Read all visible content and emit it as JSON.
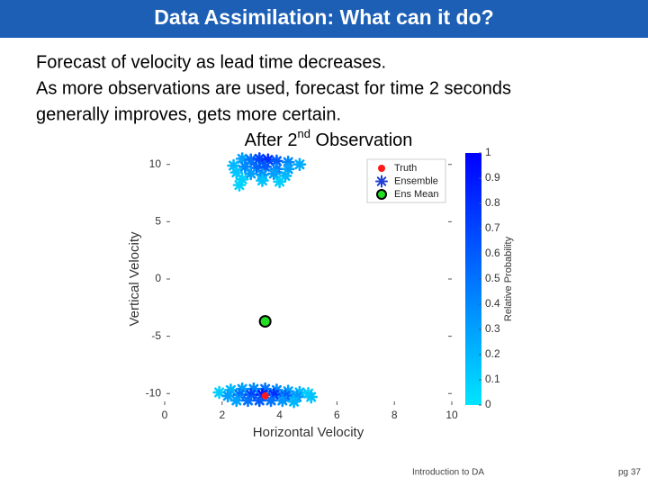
{
  "title": "Data Assimilation: What can it do?",
  "body": [
    "Forecast of velocity as lead time decreases.",
    "As more observations are used, forecast for time 2 seconds",
    "generally improves, gets more certain."
  ],
  "subtitle": [
    "After 2",
    "nd",
    " Observation"
  ],
  "footer": "Introduction to DA",
  "page_number": "pg 37",
  "chart_data": {
    "type": "scatter",
    "xlabel": "Horizontal Velocity",
    "ylabel": "Vertical Velocity",
    "xlim": [
      0,
      10
    ],
    "ylim": [
      -11,
      11
    ],
    "xticks": [
      0,
      2,
      4,
      6,
      8,
      10
    ],
    "yticks": [
      -10,
      -5,
      0,
      5,
      10
    ],
    "series": [
      {
        "name": "Truth",
        "color": "#ff1a1a",
        "marker": "dot",
        "x": [
          3.5
        ],
        "y": [
          -10.2
        ]
      },
      {
        "name": "Ensemble",
        "color": "#1f3fd6",
        "marker": "asterisk",
        "x": [
          2.7,
          3.0,
          3.3,
          3.6,
          3.9,
          4.3,
          4.7,
          2.4,
          2.8,
          3.2,
          3.5,
          3.9,
          4.3,
          2.5,
          3.0,
          3.4,
          3.8,
          4.2,
          2.7,
          3.4,
          4.0,
          2.6,
          1.9,
          2.3,
          2.7,
          3.1,
          3.5,
          3.9,
          4.3,
          4.7,
          5.0,
          2.2,
          2.6,
          3.0,
          3.4,
          3.8,
          4.2,
          4.6,
          5.1,
          2.5,
          2.9,
          3.3,
          3.7,
          4.1,
          4.5
        ],
        "y": [
          10.5,
          10.4,
          10.5,
          10.4,
          10.3,
          10.2,
          10.0,
          9.9,
          9.8,
          9.7,
          9.8,
          9.6,
          9.6,
          9.3,
          9.2,
          9.1,
          9.2,
          9.0,
          8.7,
          8.6,
          8.5,
          8.2,
          -9.9,
          -9.7,
          -9.6,
          -9.6,
          -9.6,
          -9.7,
          -9.8,
          -9.9,
          -10.0,
          -10.2,
          -10.1,
          -10.1,
          -10.1,
          -10.1,
          -10.2,
          -10.3,
          -10.3,
          -10.6,
          -10.6,
          -10.6,
          -10.6,
          -10.6,
          -10.7
        ],
        "probability": [
          0.3,
          0.5,
          0.7,
          0.8,
          0.6,
          0.4,
          0.25,
          0.2,
          0.4,
          0.55,
          0.6,
          0.45,
          0.3,
          0.15,
          0.3,
          0.35,
          0.3,
          0.2,
          0.1,
          0.15,
          0.1,
          0.08,
          0.1,
          0.2,
          0.3,
          0.4,
          0.5,
          0.4,
          0.3,
          0.2,
          0.1,
          0.3,
          0.5,
          0.7,
          0.9,
          0.8,
          0.6,
          0.35,
          0.15,
          0.3,
          0.5,
          0.6,
          0.5,
          0.35,
          0.2
        ]
      },
      {
        "name": "Ens Mean",
        "color": "#22dd22",
        "marker": "ring",
        "x": [
          3.5
        ],
        "y": [
          -3.7
        ]
      }
    ],
    "colorbar": {
      "label": "Relative Probability",
      "lim": [
        0,
        1
      ],
      "ticks": [
        0,
        0.1,
        0.2,
        0.3,
        0.4,
        0.5,
        0.6,
        0.7,
        0.8,
        0.9,
        1
      ],
      "colors": [
        "#00e5ff",
        "#0000ff"
      ]
    }
  }
}
